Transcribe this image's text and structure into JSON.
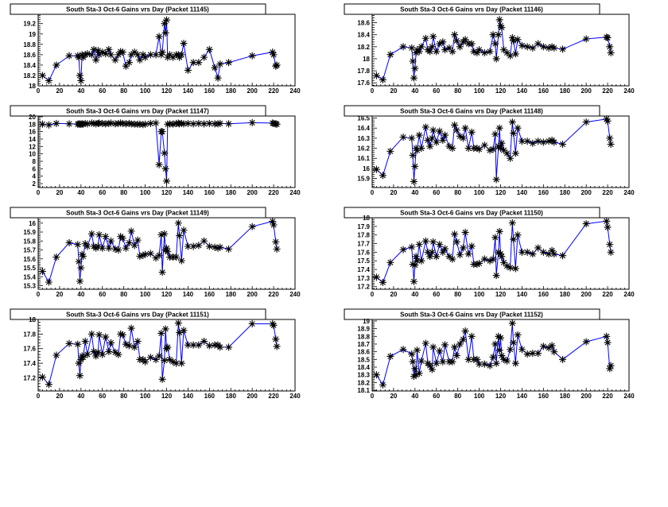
{
  "colors": {
    "line": "#0000ff",
    "marker": "#000000",
    "frame": "#000000"
  },
  "chart_data": {
    "type": "line",
    "layout": "grid-4x2",
    "xlabel": "",
    "ylabel": "",
    "xlim": [
      0,
      240
    ],
    "x_ticks": [
      "0",
      "20",
      "40",
      "60",
      "80",
      "100",
      "120",
      "140",
      "160",
      "180",
      "200",
      "220",
      "240"
    ],
    "x": [
      4,
      10,
      17,
      29,
      37,
      38,
      39,
      40,
      41,
      42,
      44,
      46,
      50,
      52,
      54,
      56,
      57,
      60,
      63,
      66,
      68,
      72,
      75,
      77,
      79,
      82,
      85,
      87,
      90,
      93,
      95,
      98,
      100,
      105,
      110,
      113,
      115,
      116,
      118,
      119,
      120,
      121,
      123,
      126,
      129,
      131,
      132,
      134,
      136,
      140,
      145,
      150,
      155,
      160,
      165,
      168,
      170,
      178,
      200,
      219,
      220,
      222,
      223
    ],
    "panels": [
      {
        "title": "South Sta-3 Oct-6 Gains vrs Day (Packet 11145)",
        "ylim": [
          18,
          19.38
        ],
        "y_ticks": [
          "18",
          "18.2",
          "18.4",
          "18.6",
          "18.8",
          "19",
          "19.2"
        ],
        "values": [
          18.2,
          18.1,
          18.4,
          18.58,
          18.58,
          18.55,
          18.2,
          18.1,
          18.6,
          18.55,
          18.6,
          18.62,
          18.6,
          18.7,
          18.5,
          18.68,
          18.6,
          18.65,
          18.62,
          18.7,
          18.6,
          18.5,
          18.6,
          18.66,
          18.65,
          18.38,
          18.45,
          18.6,
          18.65,
          18.6,
          18.5,
          18.6,
          18.55,
          18.6,
          18.6,
          18.95,
          18.6,
          18.65,
          19.2,
          19.02,
          19.27,
          18.55,
          18.6,
          18.55,
          18.6,
          18.6,
          18.55,
          18.6,
          18.82,
          18.3,
          18.45,
          18.45,
          18.55,
          18.7,
          18.35,
          18.15,
          18.42,
          18.45,
          18.58,
          18.65,
          18.6,
          18.38,
          18.4
        ]
      },
      {
        "title": "South Sta-3 Oct-6 Gains vrs Day (Packet 11146)",
        "ylim": [
          17.55,
          18.74
        ],
        "y_ticks": [
          "17.6",
          "17.8",
          "18",
          "18.2",
          "18.4",
          "18.6"
        ],
        "values": [
          17.72,
          17.65,
          18.07,
          18.2,
          18.18,
          17.96,
          17.68,
          17.84,
          18.1,
          18.15,
          18.12,
          18.2,
          18.34,
          18.15,
          18.12,
          18.2,
          18.37,
          18.12,
          18.25,
          18.28,
          18.15,
          18.18,
          18.12,
          18.4,
          18.3,
          18.2,
          18.28,
          18.32,
          18.25,
          18.25,
          18.12,
          18.1,
          18.15,
          18.1,
          18.12,
          18.4,
          18.25,
          18.0,
          18.4,
          18.65,
          18.55,
          18.52,
          18.15,
          18.1,
          18.05,
          18.35,
          18.3,
          18.08,
          18.32,
          18.22,
          18.2,
          18.18,
          18.25,
          18.2,
          18.18,
          18.2,
          18.18,
          18.16,
          18.33,
          18.36,
          18.35,
          18.2,
          18.1
        ]
      },
      {
        "title": "South Sta-3 Oct-6 Gains vrs Day (Packet 11147)",
        "ylim": [
          0.94,
          20.2
        ],
        "y_ticks": [
          "2",
          "4",
          "6",
          "8",
          "10",
          "12",
          "14",
          "16",
          "18",
          "20"
        ],
        "values": [
          18,
          17.8,
          18.2,
          18.1,
          18,
          18.1,
          18,
          18,
          18.1,
          18,
          18.2,
          18.1,
          18.3,
          18.2,
          18.1,
          18.2,
          18.3,
          18.2,
          18.1,
          18.2,
          18.3,
          18.1,
          18.2,
          18.3,
          18.2,
          18.1,
          18.2,
          18.1,
          18,
          18,
          18,
          17.9,
          18,
          18.2,
          18.3,
          7.1,
          16,
          16,
          10.2,
          6,
          2.7,
          18,
          18.1,
          18,
          18.2,
          18.3,
          18.1,
          18.2,
          18.1,
          18.2,
          18.1,
          18.2,
          18.1,
          18.2,
          18.1,
          18.1,
          18.2,
          18.1,
          18.4,
          18.3,
          18.2,
          18.1,
          18
        ]
      },
      {
        "title": "South Sta-3 Oct-6 Gains vrs Day (Packet 11148)",
        "ylim": [
          15.81,
          16.52
        ],
        "y_ticks": [
          "15.9",
          "16",
          "16.1",
          "16.2",
          "16.3",
          "16.4",
          "16.5"
        ],
        "values": [
          15.99,
          15.93,
          16.17,
          16.31,
          16.3,
          16.13,
          15.87,
          16.02,
          16.2,
          16.18,
          16.33,
          16.2,
          16.41,
          16.28,
          16.22,
          16.3,
          16.38,
          16.26,
          16.37,
          16.28,
          16.33,
          16.22,
          16.2,
          16.43,
          16.38,
          16.32,
          16.3,
          16.4,
          16.2,
          16.36,
          16.2,
          16.2,
          16.19,
          16.23,
          16.18,
          16.19,
          16.34,
          15.89,
          16.22,
          16.4,
          16.2,
          16.25,
          16.18,
          16.15,
          16.1,
          16.46,
          16.35,
          16.15,
          16.4,
          16.27,
          16.27,
          16.25,
          16.27,
          16.26,
          16.27,
          16.28,
          16.26,
          16.24,
          16.46,
          16.49,
          16.47,
          16.3,
          16.24
        ]
      },
      {
        "title": "South Sta-3 Oct-6 Gains vrs Day (Packet 11149)",
        "ylim": [
          15.26,
          16.06
        ],
        "y_ticks": [
          "15.3",
          "15.4",
          "15.5",
          "15.6",
          "15.7",
          "15.8",
          "15.9",
          "16"
        ],
        "values": [
          15.46,
          15.34,
          15.62,
          15.78,
          15.76,
          15.57,
          15.35,
          15.5,
          15.65,
          15.63,
          15.77,
          15.74,
          15.88,
          15.74,
          15.72,
          15.74,
          15.87,
          15.72,
          15.85,
          15.72,
          15.8,
          15.71,
          15.7,
          15.85,
          15.83,
          15.72,
          15.78,
          15.91,
          15.75,
          15.81,
          15.63,
          15.64,
          15.65,
          15.66,
          15.61,
          15.64,
          15.87,
          15.45,
          15.88,
          15.7,
          15.72,
          15.68,
          15.62,
          15.62,
          15.62,
          16.0,
          15.86,
          15.58,
          15.92,
          15.74,
          15.74,
          15.75,
          15.8,
          15.74,
          15.73,
          15.72,
          15.73,
          15.71,
          15.96,
          16.02,
          15.98,
          15.79,
          15.71
        ]
      },
      {
        "title": "South Sta-3 Oct-6 Gains vrs Day (Packet 11150)",
        "ylim": [
          17.17,
          18.0
        ],
        "y_ticks": [
          "17.2",
          "17.3",
          "17.4",
          "17.5",
          "17.6",
          "17.7",
          "17.8",
          "17.9",
          "18"
        ],
        "values": [
          17.31,
          17.25,
          17.48,
          17.63,
          17.66,
          17.46,
          17.26,
          17.45,
          17.55,
          17.5,
          17.69,
          17.5,
          17.73,
          17.6,
          17.55,
          17.6,
          17.72,
          17.55,
          17.69,
          17.6,
          17.64,
          17.55,
          17.52,
          17.81,
          17.72,
          17.57,
          17.65,
          17.83,
          17.58,
          17.67,
          17.46,
          17.46,
          17.47,
          17.52,
          17.5,
          17.52,
          17.77,
          17.33,
          17.6,
          17.84,
          17.58,
          17.55,
          17.48,
          17.44,
          17.42,
          17.94,
          17.75,
          17.41,
          17.8,
          17.6,
          17.6,
          17.58,
          17.65,
          17.6,
          17.58,
          17.62,
          17.58,
          17.56,
          17.93,
          17.96,
          17.89,
          17.69,
          17.6
        ]
      },
      {
        "title": "South Sta-3 Oct-6 Gains vrs Day (Packet 11151)",
        "ylim": [
          17.02,
          18.0
        ],
        "y_ticks": [
          "17.2",
          "17.4",
          "17.6",
          "17.8",
          "18"
        ],
        "values": [
          17.21,
          17.11,
          17.51,
          17.67,
          17.66,
          17.4,
          17.23,
          17.45,
          17.5,
          17.48,
          17.7,
          17.52,
          17.8,
          17.56,
          17.5,
          17.55,
          17.79,
          17.52,
          17.76,
          17.56,
          17.68,
          17.55,
          17.52,
          17.8,
          17.79,
          17.66,
          17.64,
          17.88,
          17.62,
          17.7,
          17.45,
          17.45,
          17.42,
          17.48,
          17.45,
          17.5,
          17.81,
          17.18,
          17.44,
          17.87,
          17.6,
          17.62,
          17.45,
          17.42,
          17.4,
          17.95,
          17.82,
          17.4,
          17.85,
          17.65,
          17.65,
          17.65,
          17.7,
          17.64,
          17.65,
          17.65,
          17.62,
          17.62,
          17.94,
          17.94,
          17.92,
          17.73,
          17.63
        ]
      },
      {
        "title": "South Sta-3 Oct-6 Gains vrs Day (Packet 11152)",
        "ylim": [
          18.09,
          19.02
        ],
        "y_ticks": [
          "18.1",
          "18.2",
          "18.3",
          "18.4",
          "18.5",
          "18.6",
          "18.7",
          "18.8",
          "18.9",
          "19"
        ],
        "values": [
          18.3,
          18.17,
          18.54,
          18.63,
          18.57,
          18.47,
          18.28,
          18.38,
          18.3,
          18.62,
          18.32,
          18.48,
          18.71,
          18.45,
          18.42,
          18.37,
          18.66,
          18.45,
          18.61,
          18.47,
          18.69,
          18.47,
          18.47,
          18.66,
          18.55,
          18.7,
          18.76,
          18.87,
          18.5,
          18.8,
          18.5,
          18.5,
          18.44,
          18.44,
          18.42,
          18.53,
          18.7,
          18.45,
          18.8,
          18.62,
          18.78,
          18.55,
          18.5,
          18.48,
          18.63,
          18.97,
          18.72,
          18.45,
          18.82,
          18.63,
          18.57,
          18.58,
          18.58,
          18.67,
          18.65,
          18.68,
          18.6,
          18.5,
          18.73,
          18.8,
          18.72,
          18.38,
          18.42
        ]
      }
    ]
  }
}
